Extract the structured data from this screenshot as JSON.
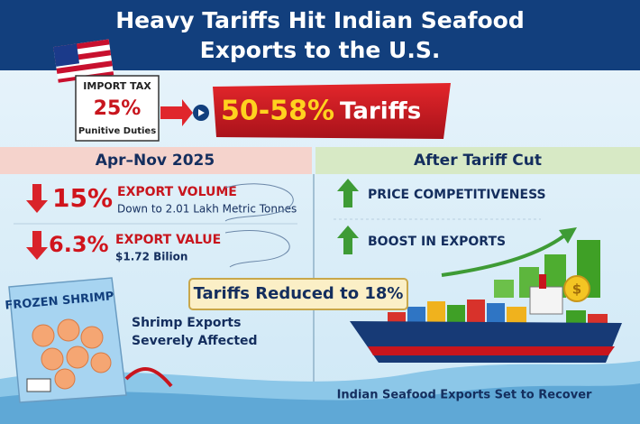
{
  "header": {
    "title_lines": [
      "Heavy Tariffs Hit Indian Seafood",
      "Exports to the U.S."
    ]
  },
  "import_tax": {
    "label": "IMPORT TAX",
    "rate": "25%",
    "note": "Punitive Duties"
  },
  "tariff_banner": {
    "rate": "50-58%",
    "label": "Tariffs"
  },
  "left_panel": {
    "heading": "Apr–Nov 2025",
    "stats": [
      {
        "change": "15%",
        "label": "EXPORT VOLUME",
        "detail": "Down to 2.01 Lakh Metric Tonnes"
      },
      {
        "change": "6.3%",
        "label": "EXPORT VALUE",
        "detail": "$1.72 Bilion"
      }
    ]
  },
  "right_panel": {
    "heading": "After Tariff Cut",
    "items": [
      "PRICE COMPETITIVENESS",
      "BOOST IN EXPORTS"
    ]
  },
  "reduction_banner": "Tariffs Reduced to 18%",
  "package_label": "FROZEN SHRIMP",
  "shrimp_caption": [
    "Shrimp Exports",
    "Severely Affected"
  ],
  "footer_caption": "Indian Seafood Exports Set to Recover"
}
